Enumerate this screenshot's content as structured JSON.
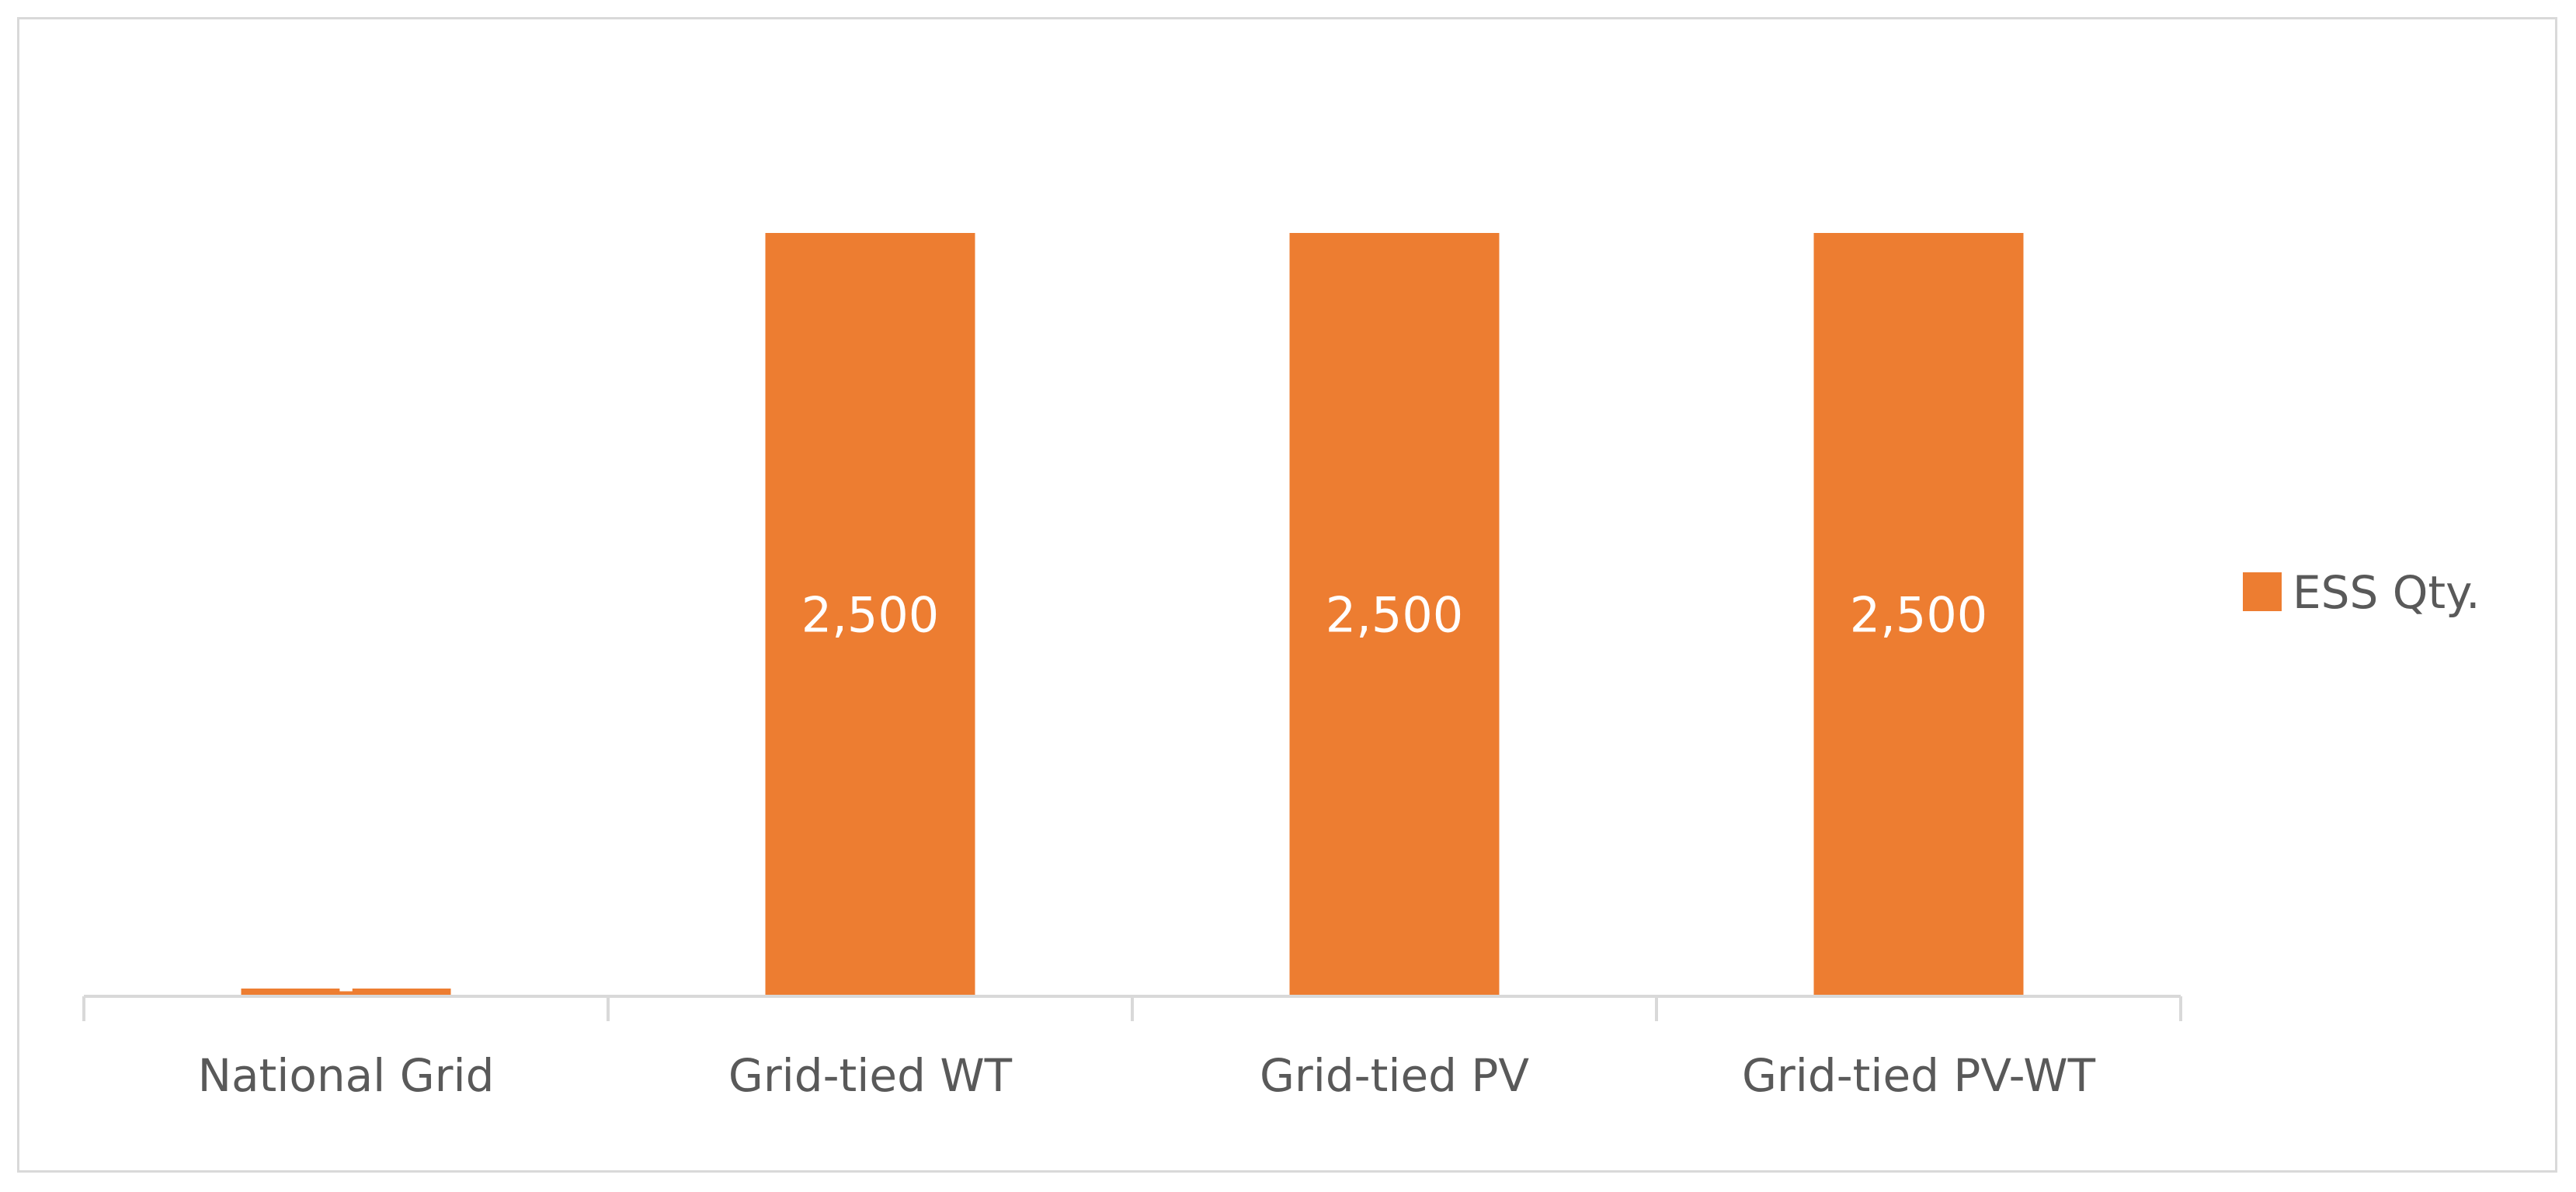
{
  "chart_data": {
    "type": "bar",
    "title": "",
    "xlabel": "",
    "ylabel": "",
    "categories": [
      "National Grid",
      "Grid-tied WT",
      "Grid-tied PV",
      "Grid-tied PV-WT"
    ],
    "series": [
      {
        "name": "ESS Qty.",
        "values": [
          0,
          2500,
          2500,
          2500
        ],
        "labels": [
          "-",
          "2,500",
          "2,500",
          "2,500"
        ],
        "color": "#ed7d31"
      }
    ],
    "ylim": [
      0,
      2500
    ],
    "grid": false,
    "legend": "right",
    "axis_color": "#d9d9d9"
  }
}
